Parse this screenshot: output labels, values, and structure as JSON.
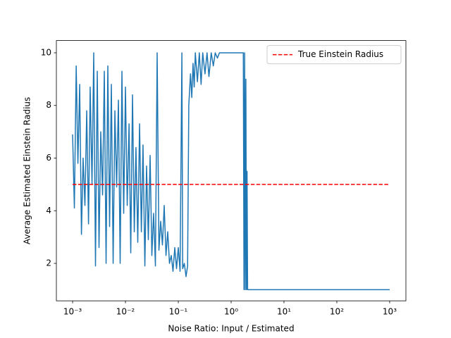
{
  "chart_data": {
    "type": "line",
    "x_label": "Noise Ratio: Input / Estimated",
    "y_label": "Average Estimated Einstein Radius",
    "x_scale": "log",
    "xlim": [
      0.000493,
      2028
    ],
    "ylim": [
      0.578,
      10.465
    ],
    "xticks": [
      {
        "value": 0.001,
        "label": "10⁻³"
      },
      {
        "value": 0.01,
        "label": "10⁻²"
      },
      {
        "value": 0.1,
        "label": "10⁻¹"
      },
      {
        "value": 1,
        "label": "10⁰"
      },
      {
        "value": 10,
        "label": "10¹"
      },
      {
        "value": 100,
        "label": "10²"
      },
      {
        "value": 1000,
        "label": "10³"
      }
    ],
    "yticks": [
      2,
      4,
      6,
      8,
      10
    ],
    "legend_position": "upper right",
    "series": [
      {
        "name": null,
        "color": "#1f77b4",
        "dash": false,
        "x": [
          0.001,
          0.00108,
          0.00117,
          0.00126,
          0.00136,
          0.00147,
          0.00158,
          0.00171,
          0.00185,
          0.002,
          0.00215,
          0.00233,
          0.00251,
          0.00271,
          0.00293,
          0.00316,
          0.00341,
          0.00369,
          0.00398,
          0.0043,
          0.00464,
          0.00501,
          0.00541,
          0.00585,
          0.00631,
          0.00681,
          0.00736,
          0.00794,
          0.00858,
          0.00926,
          0.01,
          0.0108,
          0.0117,
          0.0126,
          0.0136,
          0.0147,
          0.0158,
          0.0171,
          0.0185,
          0.02,
          0.0215,
          0.0233,
          0.0251,
          0.0271,
          0.0293,
          0.0316,
          0.0341,
          0.0369,
          0.0398,
          0.043,
          0.0464,
          0.0501,
          0.0541,
          0.0585,
          0.0631,
          0.0681,
          0.0736,
          0.0794,
          0.0858,
          0.0926,
          0.1,
          0.108,
          0.117,
          0.121,
          0.13,
          0.14,
          0.15,
          0.158,
          0.17,
          0.18,
          0.19,
          0.2,
          0.21,
          0.23,
          0.25,
          0.27,
          0.29,
          0.32,
          0.35,
          0.38,
          0.42,
          0.46,
          0.5,
          0.55,
          0.6,
          1.0,
          1.5,
          1.7,
          1.75,
          1.8,
          1.85,
          1.9,
          1.95,
          2.0,
          2.05,
          10,
          100,
          1000
        ],
        "values": [
          6.9,
          4.1,
          9.5,
          5.8,
          8.8,
          3.1,
          6.0,
          4.2,
          7.8,
          3.5,
          8.7,
          5.0,
          10.0,
          1.9,
          9.3,
          2.6,
          7.0,
          4.6,
          9.3,
          2.0,
          9.5,
          3.4,
          8.8,
          2.0,
          7.8,
          4.9,
          8.2,
          2.0,
          9.3,
          3.9,
          8.7,
          4.2,
          7.3,
          2.4,
          8.4,
          3.2,
          6.4,
          2.8,
          7.3,
          3.2,
          6.5,
          1.9,
          5.7,
          2.9,
          6.1,
          2.3,
          3.9,
          1.9,
          10.0,
          2.5,
          3.6,
          2.7,
          4.2,
          2.3,
          3.2,
          2.0,
          2.3,
          1.7,
          2.6,
          1.8,
          2.6,
          1.7,
          10.0,
          1.8,
          2.0,
          1.5,
          1.9,
          8.0,
          9.2,
          8.3,
          9.6,
          8.7,
          10.0,
          8.9,
          10.0,
          8.8,
          10.0,
          9.2,
          10.0,
          9.1,
          10.0,
          9.5,
          10.0,
          9.8,
          10.0,
          10.0,
          10.0,
          10.0,
          1.0,
          10.0,
          1.0,
          9.0,
          1.0,
          5.5,
          1.0,
          1.0,
          1.0,
          1.0
        ]
      },
      {
        "name": "True Einstein Radius",
        "color": "#ff0000",
        "dash": true,
        "x": [
          0.001,
          1000
        ],
        "values": [
          5,
          5
        ]
      }
    ]
  }
}
